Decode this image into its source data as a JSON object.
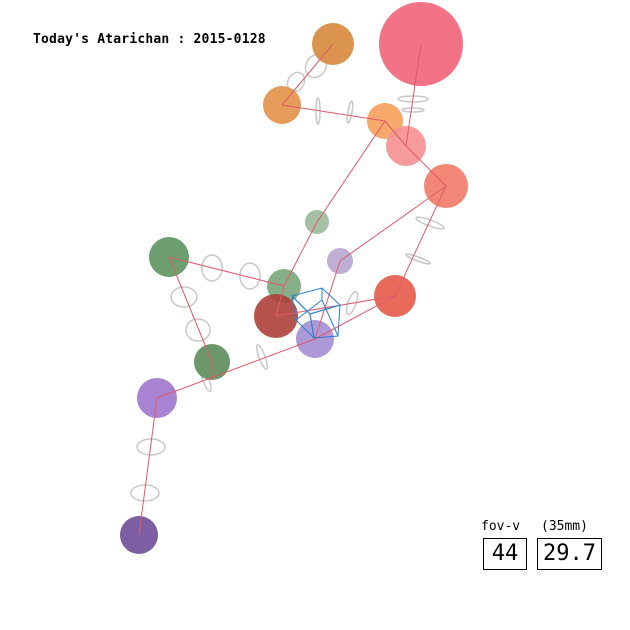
{
  "header": {
    "title": "Today's Atarichan : 2015-0128"
  },
  "camera": {
    "fov_label": "fov-v",
    "lens_label": "(35mm)",
    "fov_value": "44",
    "focal_value": "29.7"
  },
  "colors": {
    "skeleton_line": "#e05a6a",
    "joint_ring": "#c8c8c8",
    "camera_gizmo": "#2a7fd4"
  },
  "icons": {
    "camera_gizmo": "wireframe-cube-icon"
  }
}
